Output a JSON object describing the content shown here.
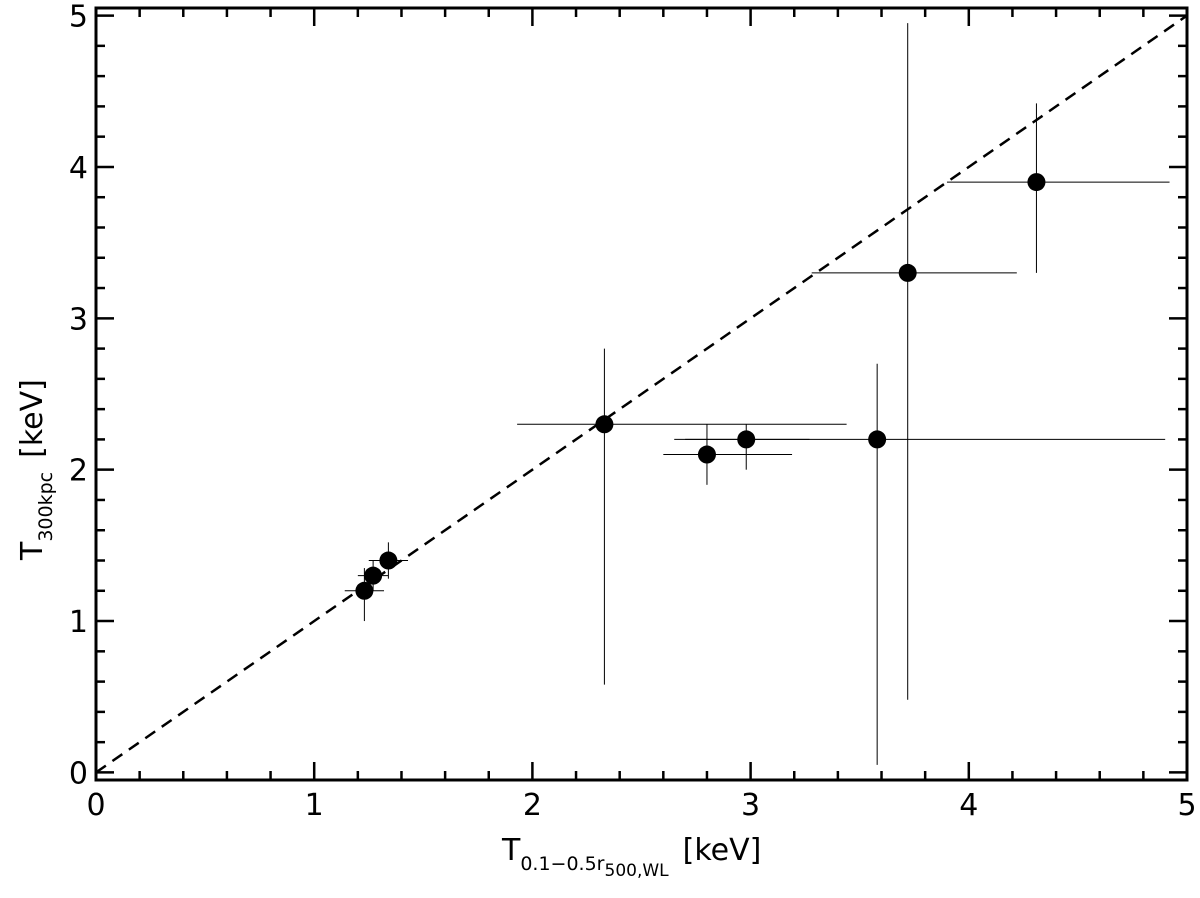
{
  "chart_data": {
    "type": "scatter",
    "xlabel": {
      "main": "T",
      "sub": "0.1−0.5r",
      "subsub": "500,WL",
      "unit": "[keV]"
    },
    "ylabel": {
      "main": "T",
      "sub": "300kpc",
      "unit": "[keV]"
    },
    "xlim": [
      0,
      5
    ],
    "ylim": [
      -0.05,
      5.05
    ],
    "xticks": [
      0,
      1,
      2,
      3,
      4,
      5
    ],
    "yticks": [
      0,
      1,
      2,
      3,
      4,
      5
    ],
    "xtick_labels": [
      "0",
      "1",
      "2",
      "3",
      "4",
      "5"
    ],
    "ytick_labels": [
      "0",
      "1",
      "2",
      "3",
      "4",
      "5"
    ],
    "grid": false,
    "reference_line": {
      "style": "dashed",
      "x": [
        0,
        5
      ],
      "y": [
        0,
        5
      ]
    },
    "points": [
      {
        "x": 1.23,
        "y": 1.2,
        "xerr": [
          1.14,
          1.32
        ],
        "yerr": [
          1.0,
          1.35
        ]
      },
      {
        "x": 1.27,
        "y": 1.3,
        "xerr": [
          1.2,
          1.34
        ],
        "yerr": [
          1.2,
          1.4
        ]
      },
      {
        "x": 1.34,
        "y": 1.4,
        "xerr": [
          1.25,
          1.43
        ],
        "yerr": [
          1.28,
          1.52
        ]
      },
      {
        "x": 2.33,
        "y": 2.3,
        "xerr": [
          1.93,
          3.44
        ],
        "yerr": [
          0.58,
          2.8
        ]
      },
      {
        "x": 2.8,
        "y": 2.1,
        "xerr": [
          2.6,
          3.19
        ],
        "yerr": [
          1.9,
          2.3
        ]
      },
      {
        "x": 2.98,
        "y": 2.2,
        "xerr": [
          2.65,
          3.27
        ],
        "yerr": [
          2.0,
          2.3
        ]
      },
      {
        "x": 3.58,
        "y": 2.2,
        "xerr": [
          2.7,
          4.9
        ],
        "yerr": [
          0.05,
          2.7
        ]
      },
      {
        "x": 3.72,
        "y": 3.3,
        "xerr": [
          3.28,
          4.22
        ],
        "yerr": [
          0.48,
          4.95
        ]
      },
      {
        "x": 4.31,
        "y": 3.9,
        "xerr": [
          3.9,
          4.92
        ],
        "yerr": [
          3.3,
          4.42
        ]
      }
    ]
  }
}
